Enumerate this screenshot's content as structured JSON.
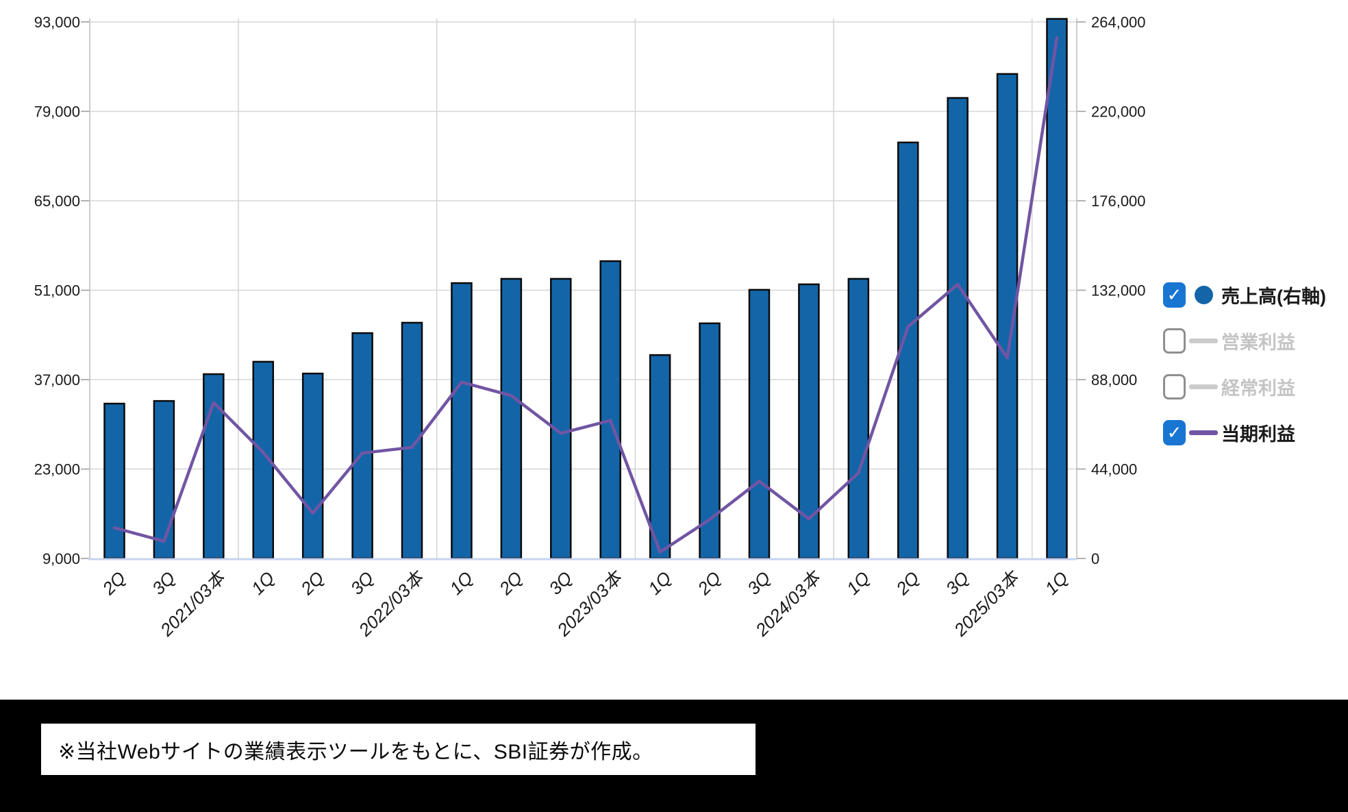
{
  "chart_data": {
    "type": "combo",
    "title": "",
    "categories": [
      "2Q",
      "3Q",
      "2021/03本",
      "1Q",
      "2Q",
      "3Q",
      "2022/03本",
      "1Q",
      "2Q",
      "3Q",
      "2023/03本",
      "1Q",
      "2Q",
      "3Q",
      "2024/03本",
      "1Q",
      "2Q",
      "3Q",
      "2025/03本",
      "1Q"
    ],
    "series": [
      {
        "name": "売上高(右軸)",
        "type": "bar",
        "axis": "right",
        "visible": true,
        "color": "#1365A8",
        "outline": "#0a0a0a",
        "values": [
          76200,
          77500,
          90700,
          96800,
          91000,
          110900,
          116000,
          135500,
          137600,
          137600,
          146300,
          100100,
          115700,
          132200,
          134900,
          137600,
          204700,
          226600,
          238400,
          265500
        ]
      },
      {
        "name": "営業利益",
        "type": "line",
        "axis": "left",
        "visible": false,
        "color": "#C9C9C9",
        "values": []
      },
      {
        "name": "経常利益",
        "type": "line",
        "axis": "left",
        "visible": false,
        "color": "#C9C9C9",
        "values": []
      },
      {
        "name": "当期利益",
        "type": "line",
        "axis": "left",
        "visible": true,
        "color": "#7155A3",
        "values": [
          13800,
          11700,
          33400,
          25600,
          16100,
          25500,
          26400,
          36600,
          34500,
          28600,
          30600,
          10000,
          15100,
          21100,
          15200,
          22400,
          45300,
          51900,
          40400,
          90500
        ]
      }
    ],
    "left_axis": {
      "ticks": [
        93000,
        79000,
        65000,
        51000,
        37000,
        23000,
        9000
      ],
      "min": 9000,
      "grid_step": 14000
    },
    "right_axis": {
      "ticks": [
        264000,
        220000,
        176000,
        132000,
        88000,
        44000,
        0
      ],
      "min": 0,
      "grid_step": 44000
    },
    "grid": true,
    "year_separators_after": [
      "2021/03本",
      "2022/03本",
      "2023/03本",
      "2024/03本",
      "2025/03本"
    ],
    "legend_position": "right"
  },
  "legend": {
    "items": [
      {
        "label": "売上高(右軸)",
        "checked": true,
        "marker": "circle",
        "marker_color": "#1365A8",
        "label_color": "#1a1a1a"
      },
      {
        "label": "営業利益",
        "checked": false,
        "marker": "line",
        "marker_color": "#CBCBCB",
        "label_color": "#C4C4C4"
      },
      {
        "label": "経常利益",
        "checked": false,
        "marker": "line",
        "marker_color": "#CBCBCB",
        "label_color": "#C4C4C4"
      },
      {
        "label": "当期利益",
        "checked": true,
        "marker": "line",
        "marker_color": "#7155A3",
        "label_color": "#1a1a1a"
      }
    ]
  },
  "caption": {
    "text": "※当社Webサイトの業績表示ツールをもとに、SBI証券が作成。"
  },
  "colors": {
    "grid": "#D6D6D6",
    "axis": "#C0C0C0",
    "baseline": "#C7D3F0",
    "tick": "#999999",
    "tick_label": "#1a1a1a",
    "background": "#FFFFFF",
    "band": "#000000"
  }
}
